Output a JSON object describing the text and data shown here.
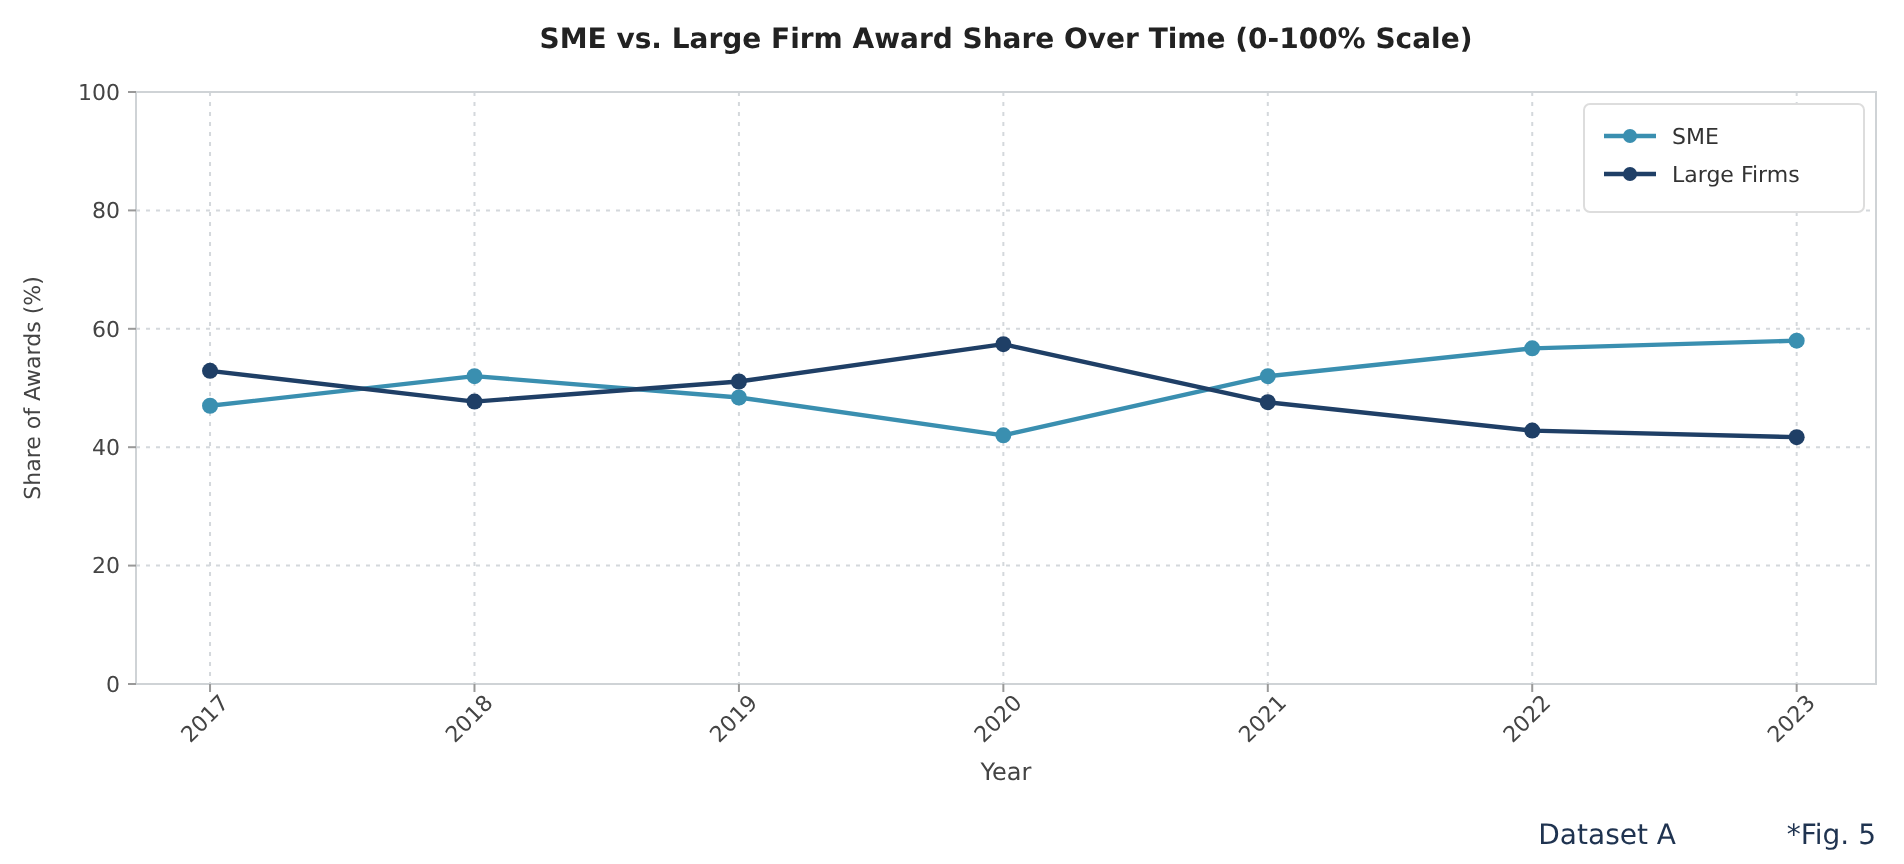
{
  "chart_data": {
    "type": "line",
    "title": "SME vs. Large Firm Award Share Over Time (0-100% Scale)",
    "xlabel": "Year",
    "ylabel": "Share of Awards (%)",
    "x": [
      2017,
      2018,
      2019,
      2020,
      2021,
      2022,
      2023
    ],
    "series": [
      {
        "name": "SME",
        "color": "#3a8fb0",
        "values": [
          47,
          52,
          48.4,
          42,
          52,
          56.7,
          58
        ]
      },
      {
        "name": "Large Firms",
        "color": "#1f3f66",
        "values": [
          52.9,
          47.7,
          51.1,
          57.4,
          47.6,
          42.8,
          41.7
        ]
      }
    ],
    "xlim": [
      2016.72,
      2023.3
    ],
    "xticks": [
      2017,
      2018,
      2019,
      2020,
      2021,
      2022,
      2023
    ],
    "ylim": [
      0,
      100
    ],
    "yticks": [
      0,
      20,
      40,
      60,
      80,
      100
    ],
    "grid": true,
    "legend": "top right",
    "marker": "circle",
    "line_style": "solid",
    "annotations": [
      "Dataset A",
      "*Fig. 5"
    ]
  }
}
